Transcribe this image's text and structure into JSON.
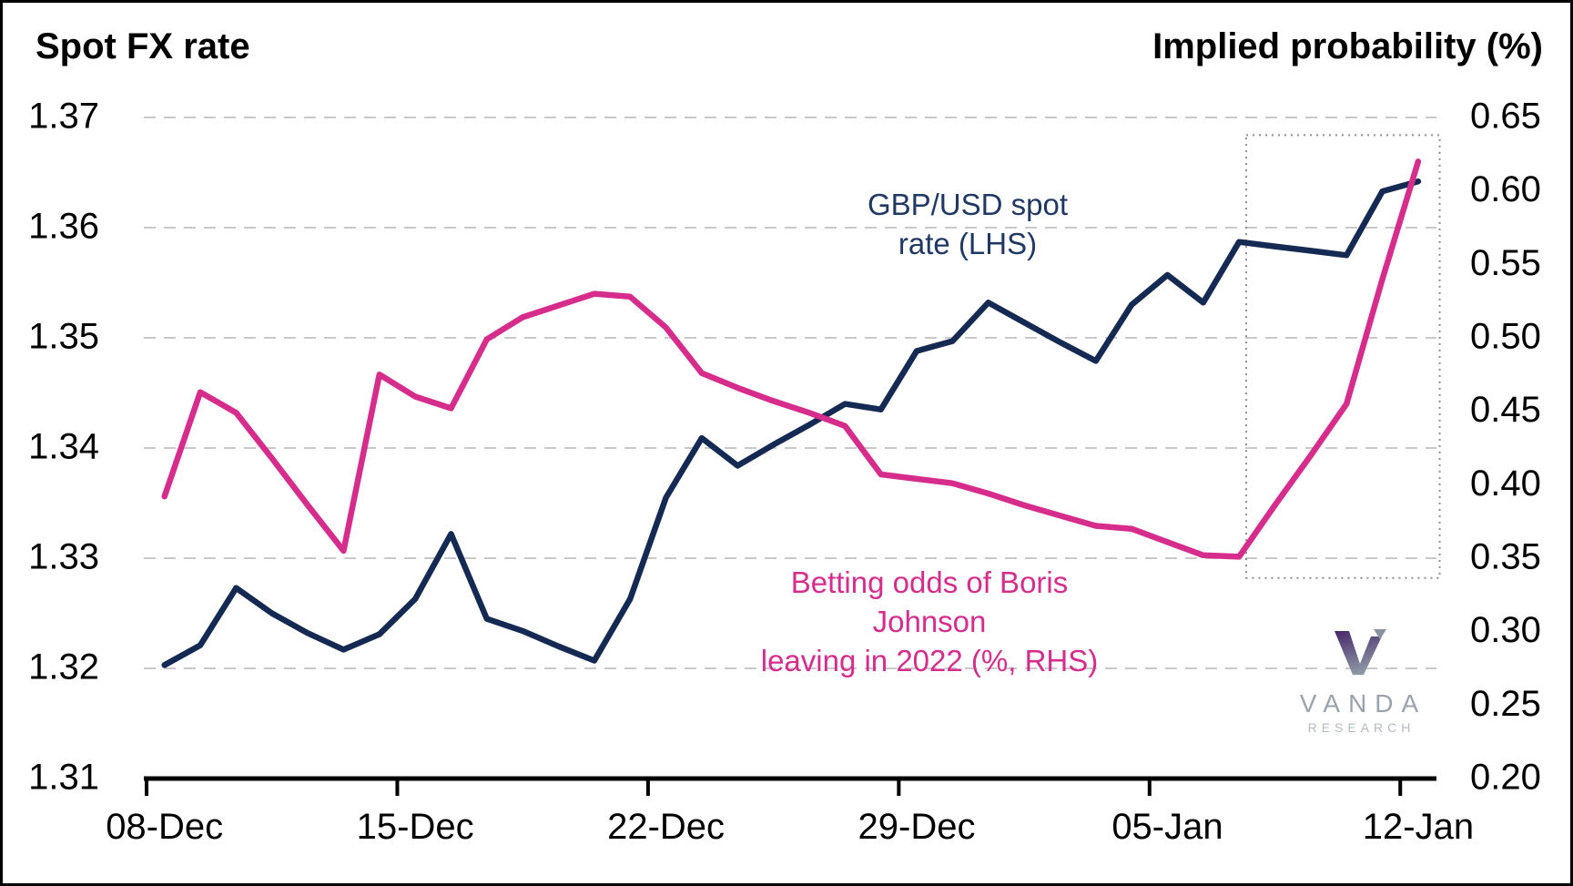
{
  "titles": {
    "left": "Spot FX rate",
    "right": "Implied probability (%)"
  },
  "annotations": {
    "gbp": "GBP/USD spot\nrate (LHS)",
    "betting": "Betting odds of Boris Johnson\nleaving in 2022 (%, RHS)"
  },
  "logo": {
    "brand": "VANDA",
    "sub": "RESEARCH",
    "mark": "vanda-v-icon"
  },
  "colors": {
    "gbp_line": "#152A52",
    "odds_line": "#D62D8C",
    "gbp_text": "#1F3864",
    "odds_text": "#D62D8C",
    "gridline": "#C9C9C9",
    "axis": "#000000",
    "highlight_box": "#8C8C8C"
  },
  "chart_data": {
    "type": "line",
    "title": "",
    "xlabel": "",
    "grid": "horizontal-dashed",
    "x_dates": [
      "08-Dec",
      "09-Dec",
      "10-Dec",
      "11-Dec",
      "12-Dec",
      "13-Dec",
      "14-Dec",
      "15-Dec",
      "16-Dec",
      "17-Dec",
      "18-Dec",
      "19-Dec",
      "20-Dec",
      "21-Dec",
      "22-Dec",
      "23-Dec",
      "24-Dec",
      "25-Dec",
      "26-Dec",
      "27-Dec",
      "28-Dec",
      "29-Dec",
      "30-Dec",
      "31-Dec",
      "01-Jan",
      "02-Jan",
      "03-Jan",
      "04-Jan",
      "05-Jan",
      "06-Jan",
      "07-Jan",
      "08-Jan",
      "09-Jan",
      "10-Jan",
      "11-Jan",
      "12-Jan"
    ],
    "x_tick_labels": [
      "08-Dec",
      "15-Dec",
      "22-Dec",
      "29-Dec",
      "05-Jan",
      "12-Jan"
    ],
    "x_tick_days": [
      0,
      7,
      14,
      21,
      28,
      35
    ],
    "left_axis": {
      "title": "Spot FX rate",
      "min": 1.31,
      "max": 1.37,
      "step": 0.01,
      "tick_labels": [
        "1.37",
        "1.36",
        "1.35",
        "1.34",
        "1.33",
        "1.32",
        "1.31"
      ],
      "tick_values": [
        1.37,
        1.36,
        1.35,
        1.34,
        1.33,
        1.32,
        1.31
      ]
    },
    "right_axis": {
      "title": "Implied probability (%)",
      "min": 0.2,
      "max": 0.65,
      "step": 0.05,
      "tick_labels": [
        "0.65",
        "0.60",
        "0.55",
        "0.50",
        "0.45",
        "0.40",
        "0.35",
        "0.30",
        "0.25",
        "0.20"
      ],
      "tick_values": [
        0.65,
        0.6,
        0.55,
        0.5,
        0.45,
        0.4,
        0.35,
        0.3,
        0.25,
        0.2
      ]
    },
    "series": [
      {
        "name": "GBP/USD spot rate (LHS)",
        "axis": "left",
        "color": "#152A52",
        "values": [
          1.3203,
          1.3221,
          1.3273,
          1.325,
          1.3232,
          1.3217,
          1.3231,
          1.3263,
          1.3322,
          1.3245,
          1.3234,
          1.322,
          1.3207,
          1.3263,
          1.3355,
          1.3409,
          1.3384,
          1.3403,
          1.3421,
          1.344,
          1.3435,
          1.3488,
          1.3497,
          1.3532,
          1.3514,
          1.3496,
          1.3479,
          1.353,
          1.3557,
          1.3532,
          1.3587,
          1.3583,
          1.3579,
          1.3575,
          1.3633,
          1.3642
        ]
      },
      {
        "name": "Betting odds of Boris Johnson leaving in 2022 (%, RHS)",
        "axis": "right",
        "color": "#D62D8C",
        "values": [
          0.392,
          0.463,
          0.449,
          0.418,
          0.386,
          0.355,
          0.475,
          0.46,
          0.452,
          0.499,
          0.514,
          0.522,
          0.53,
          0.528,
          0.507,
          0.476,
          0.466,
          0.457,
          0.449,
          0.44,
          0.407,
          0.404,
          0.401,
          0.394,
          0.386,
          0.379,
          0.372,
          0.37,
          0.361,
          0.352,
          0.351,
          0.386,
          0.42,
          0.455,
          0.54,
          0.62
        ]
      }
    ],
    "highlight_box": {
      "day_from": 30.2,
      "day_to": 35.6,
      "top_left_axis_value": 1.3684,
      "bottom_left_axis_value": 1.3282
    },
    "legend_position": "in-plot-annotations"
  }
}
